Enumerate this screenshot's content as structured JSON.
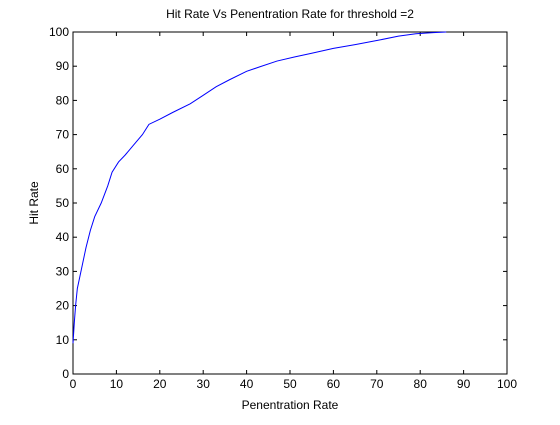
{
  "chart_data": {
    "type": "line",
    "title": "Hit Rate Vs Penentration Rate for threshold =2",
    "xlabel": "Penentration Rate",
    "ylabel": "Hit Rate",
    "xlim": [
      0,
      100
    ],
    "ylim": [
      0,
      100
    ],
    "xticks": [
      0,
      10,
      20,
      30,
      40,
      50,
      60,
      70,
      80,
      90,
      100
    ],
    "yticks": [
      0,
      10,
      20,
      30,
      40,
      50,
      60,
      70,
      80,
      90,
      100
    ],
    "grid": false,
    "line_color": "#0000ff",
    "series": [
      {
        "x": [
          0,
          0.3,
          0.6,
          1.0,
          1.5,
          2.0,
          3.0,
          4.0,
          5.0,
          6.5,
          8.0,
          9.0,
          10.5,
          12.0,
          14.0,
          16.0,
          17.5,
          20.0,
          23.0,
          27.0,
          30.0,
          33.0,
          36.0,
          40.0,
          43.0,
          47.0,
          51.0,
          55.0,
          60.0,
          65.0,
          70.0,
          75.0,
          79.0,
          83.0,
          86.0
        ],
        "y": [
          9,
          15,
          20,
          25,
          28,
          31,
          37,
          42,
          46,
          50,
          55,
          59,
          62,
          64,
          67,
          70,
          73,
          74.5,
          76.5,
          79,
          81.5,
          84,
          86,
          88.5,
          89.8,
          91.5,
          92.7,
          93.8,
          95.2,
          96.3,
          97.5,
          98.8,
          99.5,
          99.8,
          100
        ]
      }
    ]
  }
}
